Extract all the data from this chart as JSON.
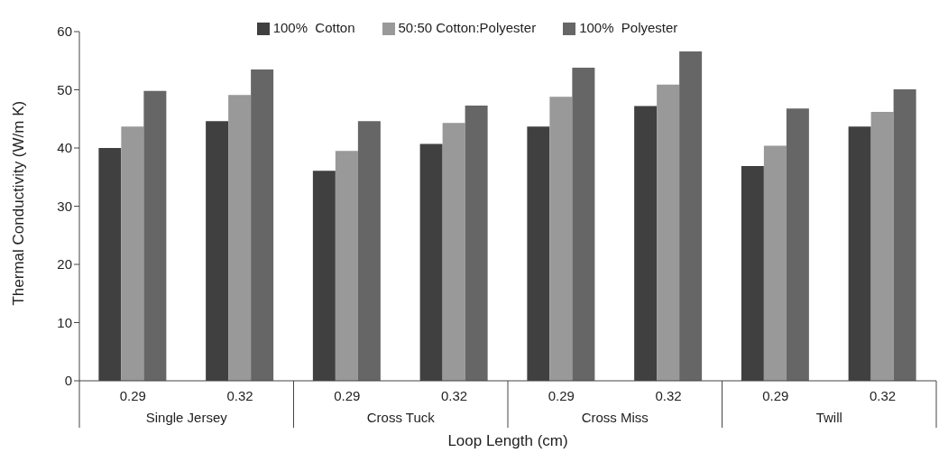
{
  "chart_data": {
    "type": "bar",
    "xlabel": "Loop Length (cm)",
    "ylabel": "Thermal Conductivity  (W/m K)",
    "categories": [
      "0.29",
      "0.32",
      "0.29",
      "0.32",
      "0.29",
      "0.32",
      "0.29",
      "0.32"
    ],
    "annotations": [
      "Single Jersey",
      "Cross Tuck",
      "Cross Miss",
      "Twill"
    ],
    "series": [
      {
        "name": "100%  Cotton",
        "color": "#404040",
        "values": [
          40.0,
          44.6,
          36.1,
          40.7,
          43.7,
          47.2,
          36.9,
          43.7
        ]
      },
      {
        "name": "50:50 Cotton:Polyester",
        "color": "#999999",
        "values": [
          43.7,
          49.1,
          39.5,
          44.3,
          48.8,
          50.9,
          40.4,
          46.2
        ]
      },
      {
        "name": "100%  Polyester",
        "color": "#666666",
        "values": [
          49.8,
          53.5,
          44.6,
          47.3,
          53.8,
          56.6,
          46.8,
          50.1
        ]
      }
    ],
    "ylim": [
      0,
      60
    ],
    "yticks": [
      0,
      10,
      20,
      30,
      40,
      50,
      60
    ],
    "legend": "top"
  }
}
